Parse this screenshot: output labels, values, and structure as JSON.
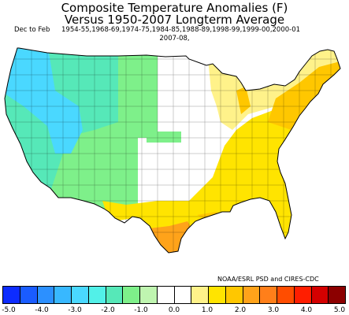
{
  "title_line1": "Composite Temperature Anomalies (F)",
  "title_line2": "Versus 1950-2007 Longterm Average",
  "season": "Dec to Feb",
  "years_line1": "1954-55,1968-69,1974-75,1984-85,1988-89,1998-99,1999-00,2000-01",
  "years_line2": "2007-08,",
  "credit": "NOAA/ESRL PSD and CIRES-CDC",
  "colorbar": {
    "colors": [
      "#0d2cff",
      "#1a5cff",
      "#2c90ff",
      "#38b8ff",
      "#4ad8ff",
      "#52f0e8",
      "#56e8b8",
      "#7ef08a",
      "#bff5b0",
      "#ffffff",
      "#ffffff",
      "#fff28a",
      "#ffe400",
      "#ffc700",
      "#ffa31a",
      "#ff7f1a",
      "#ff4d00",
      "#ff1e00",
      "#d40000",
      "#8c0000"
    ],
    "tick_labels": [
      "-5.0",
      "-4.0",
      "-3.0",
      "-2.0",
      "-1.0",
      "0.0",
      "1.0",
      "2.0",
      "3.0",
      "4.0",
      "5.0"
    ]
  },
  "map_regions": [
    {
      "name": "pacific-northwest",
      "anomaly_color": "#4ad8ff"
    },
    {
      "name": "california-great-basin",
      "anomaly_color": "#56e8b8"
    },
    {
      "name": "northern-rockies",
      "anomaly_color": "#56e8b8"
    },
    {
      "name": "southwest",
      "anomaly_color": "#7ef08a"
    },
    {
      "name": "northern-plains",
      "anomaly_color": "#7ef08a"
    },
    {
      "name": "central-plains",
      "anomaly_color": "#ffffff"
    },
    {
      "name": "midwest",
      "anomaly_color": "#ffffff"
    },
    {
      "name": "great-lakes",
      "anomaly_color": "#fff28a"
    },
    {
      "name": "southeast",
      "anomaly_color": "#ffe400"
    },
    {
      "name": "northeast",
      "anomaly_color": "#ffc700"
    },
    {
      "name": "texas-south",
      "anomaly_color": "#ffe400"
    },
    {
      "name": "south-texas-coast",
      "anomaly_color": "#ffa31a"
    }
  ]
}
